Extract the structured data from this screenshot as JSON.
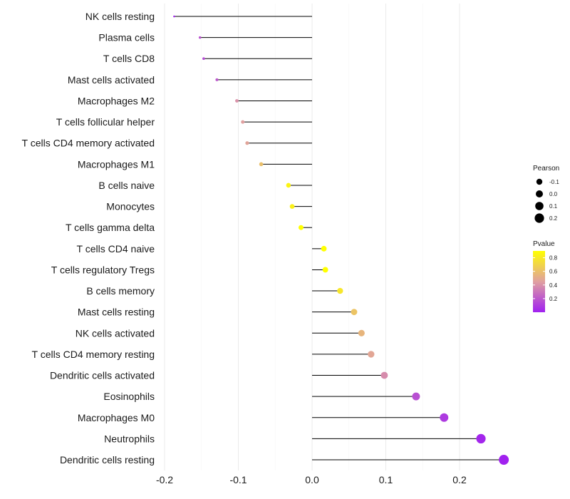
{
  "chart_data": {
    "type": "scatter",
    "subtype": "lollipop",
    "title": "",
    "xlabel": "",
    "ylabel": "",
    "xlim": [
      -0.2,
      0.26
    ],
    "x_ticks": [
      -0.2,
      -0.1,
      0.0,
      0.1,
      0.2
    ],
    "x_tick_labels": [
      "-0.2",
      "-0.1",
      "0.0",
      "0.1",
      "0.2"
    ],
    "categories": [
      "NK cells resting",
      "Plasma cells",
      "T cells CD8",
      "Mast cells activated",
      "Macrophages M2",
      "T cells follicular helper",
      "T cells CD4 memory activated",
      "Macrophages M1",
      "B cells naive",
      "Monocytes",
      "T cells gamma delta",
      "T cells CD4 naive",
      "T cells regulatory  Tregs",
      "B cells memory",
      "Mast cells resting",
      "NK cells activated",
      "T cells CD4 memory resting",
      "Dendritic cells activated",
      "Eosinophils",
      "Macrophages M0",
      "Neutrophils",
      "Dendritic cells resting"
    ],
    "pearson": [
      -0.187,
      -0.152,
      -0.147,
      -0.129,
      -0.102,
      -0.094,
      -0.088,
      -0.069,
      -0.032,
      -0.027,
      -0.015,
      0.016,
      0.018,
      0.038,
      0.057,
      0.067,
      0.08,
      0.098,
      0.141,
      0.179,
      0.229,
      0.26
    ],
    "pvalue": [
      0.01,
      0.18,
      0.15,
      0.2,
      0.4,
      0.45,
      0.47,
      0.6,
      0.85,
      0.83,
      0.9,
      0.93,
      0.92,
      0.78,
      0.62,
      0.55,
      0.48,
      0.38,
      0.17,
      0.09,
      0.02,
      0.005
    ],
    "legend_size": {
      "title": "Pearson",
      "entries": [
        "-0.1",
        "0.0",
        "0.1",
        "0.2"
      ],
      "values": [
        -0.1,
        0.0,
        0.1,
        0.2
      ]
    },
    "legend_color": {
      "title": "Pvalue",
      "ticks": [
        "0.8",
        "0.6",
        "0.4",
        "0.2"
      ],
      "tick_values": [
        0.8,
        0.6,
        0.4,
        0.2
      ],
      "range": [
        0.0,
        0.9
      ],
      "color_low": "#a020f0",
      "color_mid": "#e0a0a0",
      "color_high": "#ffff00"
    },
    "grid": true,
    "legend_position": "right"
  }
}
